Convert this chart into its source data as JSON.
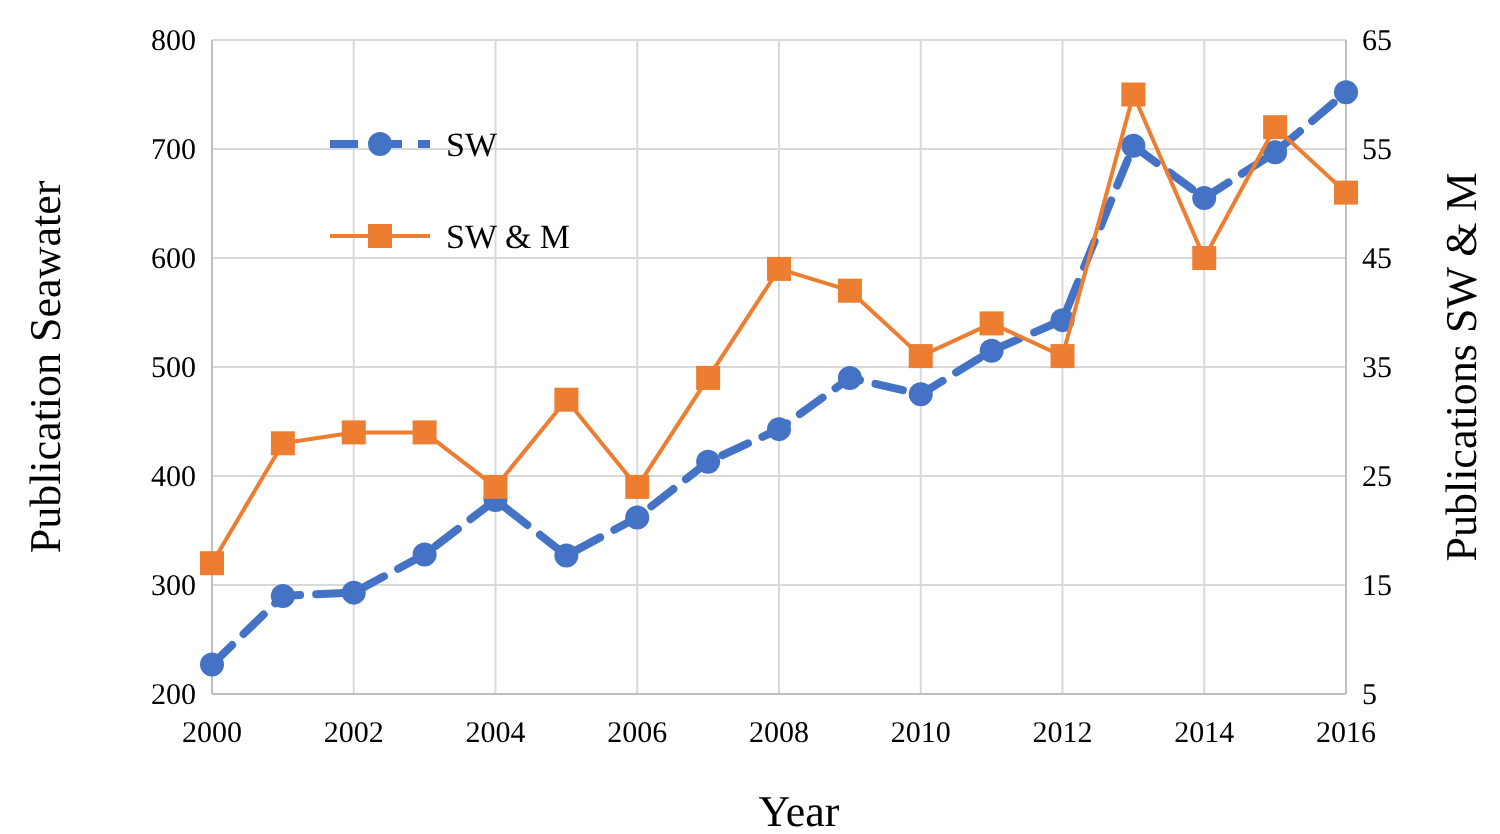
{
  "chart_data": {
    "type": "line",
    "xlabel": "Year",
    "ylabel": "Publication Seawater",
    "y2label": "Publications SW & M",
    "x": [
      2000,
      2001,
      2002,
      2003,
      2004,
      2005,
      2006,
      2007,
      2008,
      2009,
      2010,
      2011,
      2012,
      2013,
      2014,
      2015,
      2016
    ],
    "xlim": [
      2000,
      2016
    ],
    "xticks": [
      2000,
      2002,
      2004,
      2006,
      2008,
      2010,
      2012,
      2014,
      2016
    ],
    "ylim": [
      200,
      800
    ],
    "yticks": [
      200,
      300,
      400,
      500,
      600,
      700,
      800
    ],
    "y2lim": [
      5,
      65
    ],
    "y2ticks": [
      5,
      15,
      25,
      35,
      45,
      55,
      65
    ],
    "grid": true,
    "legend": "top left",
    "series": [
      {
        "name": "SW",
        "color": "#4472c4",
        "marker": "circle",
        "line_style": "dashed",
        "values": [
          227,
          290,
          293,
          328,
          378,
          327,
          362,
          413,
          443,
          490,
          475,
          515,
          543,
          703,
          655,
          697,
          752
        ]
      },
      {
        "name": "SW & M",
        "color": "#ed7d31",
        "marker": "square",
        "line_style": "solid",
        "axis": "y2",
        "values": [
          17,
          28,
          29,
          29,
          24,
          32,
          24,
          34,
          44,
          42,
          36,
          39,
          36,
          60,
          45,
          57,
          51
        ]
      }
    ]
  }
}
